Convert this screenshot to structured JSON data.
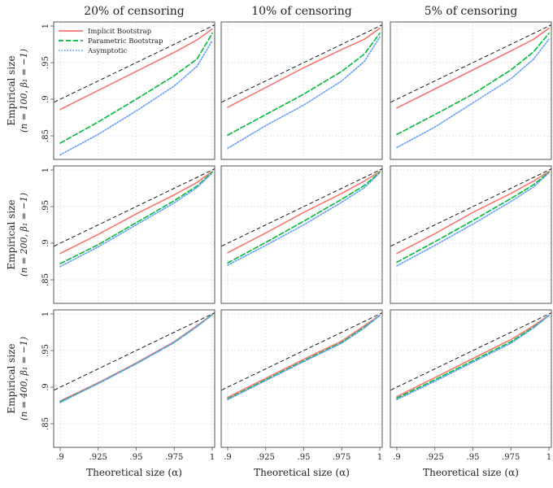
{
  "chart_data": {
    "type": "line",
    "x_label": "Theoretical size (α)",
    "x_ticks": [
      ".9",
      ".925",
      ".95",
      ".975",
      "1"
    ],
    "y_ticks": [
      ".85",
      ".9",
      ".95",
      "1"
    ],
    "xlim": [
      0.9,
      1.0
    ],
    "ylim": [
      0.82,
      1.005
    ],
    "columns": [
      "20% of censoring",
      "10% of censoring",
      "5% of censoring"
    ],
    "rows": [
      {
        "label1": "Empirical size",
        "label2": "(n = 100, β₁ = −1)"
      },
      {
        "label1": "Empirical size",
        "label2": "(n = 200, β₁ = −1)"
      },
      {
        "label1": "Empirical size",
        "label2": "(n = 400, β₁ = −1)"
      }
    ],
    "legend": [
      {
        "name": "Implicit Bootstrap",
        "color": "#F8766D",
        "dash": ""
      },
      {
        "name": "Parametric Bootstrap",
        "color": "#00BA38",
        "dash": "6,3"
      },
      {
        "name": "Asymptotic",
        "color": "#619CFF",
        "dash": "1.5,2"
      }
    ],
    "reference_line": {
      "color": "#000000",
      "dash": "5,3"
    },
    "x": [
      0.9,
      0.925,
      0.95,
      0.975,
      0.99,
      1.0
    ],
    "panels": [
      [
        {
          "implicit": [
            0.886,
            0.912,
            0.938,
            0.964,
            0.981,
            0.996
          ],
          "parametric": [
            0.84,
            0.869,
            0.9,
            0.932,
            0.955,
            0.99
          ],
          "asymptotic": [
            0.824,
            0.852,
            0.884,
            0.918,
            0.945,
            0.98
          ]
        },
        {
          "implicit": [
            0.889,
            0.916,
            0.943,
            0.968,
            0.982,
            0.997
          ],
          "parametric": [
            0.851,
            0.879,
            0.907,
            0.938,
            0.962,
            0.99
          ],
          "asymptotic": [
            0.833,
            0.864,
            0.892,
            0.925,
            0.952,
            0.985
          ]
        },
        {
          "implicit": [
            0.888,
            0.914,
            0.94,
            0.966,
            0.982,
            0.997
          ],
          "parametric": [
            0.852,
            0.879,
            0.907,
            0.94,
            0.965,
            0.99
          ],
          "asymptotic": [
            0.834,
            0.862,
            0.895,
            0.928,
            0.955,
            0.982
          ]
        }
      ],
      [
        {
          "implicit": [
            0.886,
            0.912,
            0.94,
            0.966,
            0.983,
            0.998
          ],
          "parametric": [
            0.872,
            0.898,
            0.928,
            0.958,
            0.978,
            0.997
          ],
          "asymptotic": [
            0.868,
            0.895,
            0.925,
            0.955,
            0.976,
            0.996
          ]
        },
        {
          "implicit": [
            0.887,
            0.914,
            0.942,
            0.968,
            0.985,
            0.998
          ],
          "parametric": [
            0.873,
            0.901,
            0.93,
            0.96,
            0.979,
            0.997
          ],
          "asymptotic": [
            0.87,
            0.897,
            0.925,
            0.956,
            0.976,
            0.996
          ]
        },
        {
          "implicit": [
            0.886,
            0.913,
            0.942,
            0.968,
            0.985,
            0.998
          ],
          "parametric": [
            0.874,
            0.902,
            0.931,
            0.961,
            0.98,
            0.997
          ],
          "asymptotic": [
            0.869,
            0.897,
            0.926,
            0.957,
            0.977,
            0.996
          ]
        }
      ],
      [
        {
          "implicit": [
            0.881,
            0.906,
            0.933,
            0.962,
            0.984,
            0.999
          ],
          "parametric": [
            0.88,
            0.905,
            0.932,
            0.961,
            0.983,
            0.999
          ],
          "asymptotic": [
            0.879,
            0.905,
            0.932,
            0.961,
            0.983,
            0.999
          ]
        },
        {
          "implicit": [
            0.886,
            0.912,
            0.938,
            0.963,
            0.984,
            0.998
          ],
          "parametric": [
            0.884,
            0.91,
            0.936,
            0.961,
            0.982,
            0.998
          ],
          "asymptotic": [
            0.883,
            0.909,
            0.935,
            0.96,
            0.981,
            0.998
          ]
        },
        {
          "implicit": [
            0.887,
            0.913,
            0.939,
            0.965,
            0.984,
            0.998
          ],
          "parametric": [
            0.885,
            0.91,
            0.936,
            0.962,
            0.982,
            0.998
          ],
          "asymptotic": [
            0.883,
            0.908,
            0.934,
            0.96,
            0.981,
            0.998
          ]
        }
      ]
    ]
  }
}
